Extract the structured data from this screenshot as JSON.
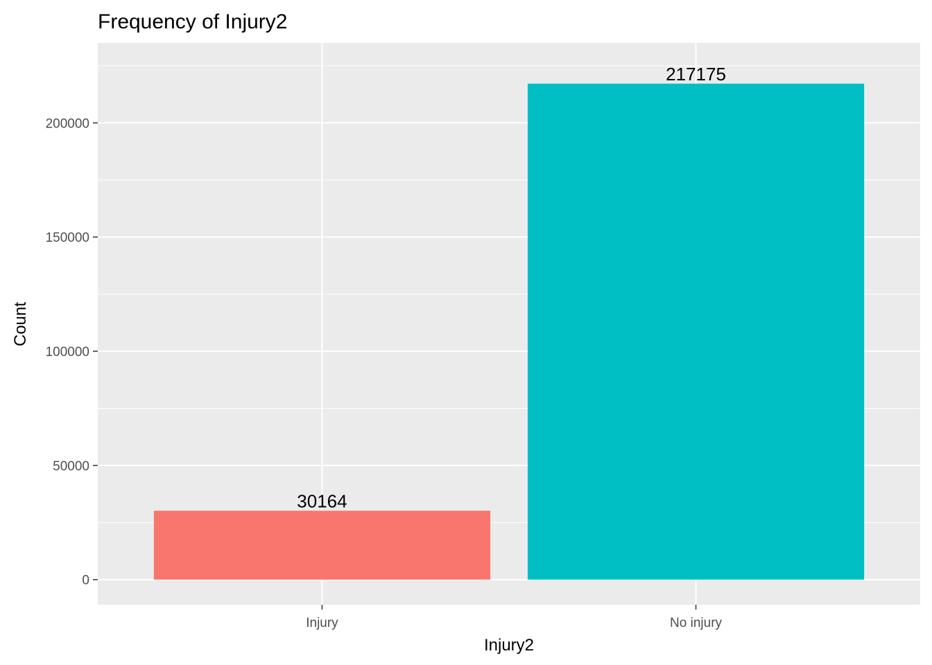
{
  "chart_data": {
    "type": "bar",
    "title": "Frequency of Injury2",
    "xlabel": "Injury2",
    "ylabel": "Count",
    "categories": [
      "Injury",
      "No injury"
    ],
    "values": [
      30164,
      217175
    ],
    "data_labels": [
      "30164",
      "217175"
    ],
    "colors": [
      "#F8766D",
      "#00BFC4"
    ],
    "ylim": [
      -11000,
      235000
    ],
    "yticks": [
      0,
      50000,
      100000,
      150000,
      200000
    ],
    "ytick_labels": [
      "0",
      "50000",
      "100000",
      "150000",
      "200000"
    ],
    "grid": true,
    "legend": "none",
    "panel_background": "#EBEBEB",
    "grid_color": "#FFFFFF"
  }
}
